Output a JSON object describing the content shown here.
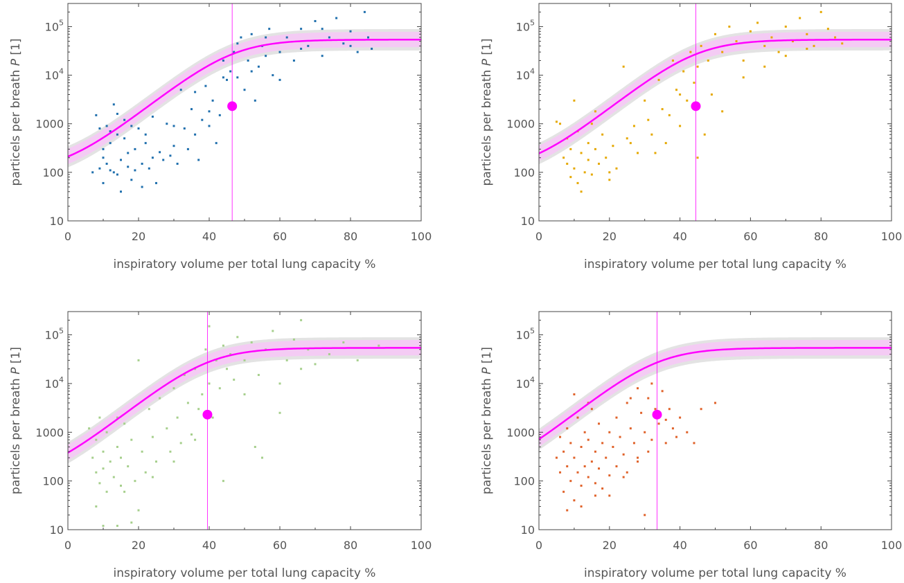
{
  "chart_data": [
    {
      "type": "scatter",
      "xlabel": "inspiratory volume per total lung capacity %",
      "ylabel_text": "particels per breath ",
      "ylabel_symbol": "P",
      "ylabel_unit": " [1]",
      "xlim": [
        0,
        100
      ],
      "ylim": [
        10,
        300000
      ],
      "y_scale": "log",
      "x_ticks": [
        "0",
        "20",
        "40",
        "60",
        "80",
        "100"
      ],
      "y_ticks": [
        "10",
        "100",
        "1000",
        "10^4",
        "10^5"
      ],
      "grid": false,
      "marker_color": "#1f6fad",
      "midpoint": {
        "x": 46.5,
        "y": 2300
      },
      "fit_curve": {
        "color": "#ff00ff",
        "band": "#f5c8f5",
        "outer_band": "#dcdcdc",
        "low": 100,
        "high": 54000,
        "x0": 46.5,
        "k": 0.133
      },
      "points": [
        [
          8,
          1500
        ],
        [
          9,
          800
        ],
        [
          9,
          120
        ],
        [
          10,
          300
        ],
        [
          10,
          200
        ],
        [
          11,
          150
        ],
        [
          11,
          900
        ],
        [
          12,
          400
        ],
        [
          12,
          110
        ],
        [
          13,
          2500
        ],
        [
          13,
          100
        ],
        [
          14,
          600
        ],
        [
          14,
          90
        ],
        [
          15,
          180
        ],
        [
          15,
          40
        ],
        [
          16,
          1200
        ],
        [
          16,
          500
        ],
        [
          17,
          250
        ],
        [
          17,
          130
        ],
        [
          18,
          70
        ],
        [
          19,
          300
        ],
        [
          19,
          110
        ],
        [
          20,
          800
        ],
        [
          21,
          150
        ],
        [
          21,
          50
        ],
        [
          22,
          400
        ],
        [
          23,
          120
        ],
        [
          24,
          200
        ],
        [
          25,
          60
        ],
        [
          26,
          260
        ],
        [
          27,
          180
        ],
        [
          28,
          1000
        ],
        [
          29,
          220
        ],
        [
          30,
          350
        ],
        [
          31,
          150
        ],
        [
          32,
          5000
        ],
        [
          33,
          800
        ],
        [
          34,
          300
        ],
        [
          35,
          2000
        ],
        [
          36,
          600
        ],
        [
          37,
          180
        ],
        [
          38,
          1200
        ],
        [
          39,
          6000
        ],
        [
          40,
          900
        ],
        [
          41,
          3000
        ],
        [
          42,
          400
        ],
        [
          43,
          1500
        ],
        [
          44,
          20000
        ],
        [
          45,
          8000
        ],
        [
          46,
          12000
        ],
        [
          47,
          30000
        ],
        [
          48,
          9000
        ],
        [
          49,
          60000
        ],
        [
          50,
          5000
        ],
        [
          51,
          20000
        ],
        [
          52,
          70000
        ],
        [
          53,
          3000
        ],
        [
          54,
          15000
        ],
        [
          55,
          40000
        ],
        [
          56,
          25000
        ],
        [
          57,
          90000
        ],
        [
          58,
          10000
        ],
        [
          60,
          30000
        ],
        [
          62,
          60000
        ],
        [
          64,
          20000
        ],
        [
          66,
          90000
        ],
        [
          68,
          40000
        ],
        [
          70,
          130000
        ],
        [
          72,
          25000
        ],
        [
          74,
          60000
        ],
        [
          76,
          150000
        ],
        [
          78,
          45000
        ],
        [
          80,
          80000
        ],
        [
          82,
          30000
        ],
        [
          84,
          200000
        ],
        [
          85,
          60000
        ],
        [
          86,
          35000
        ],
        [
          7,
          100
        ],
        [
          10,
          60
        ],
        [
          12,
          700
        ],
        [
          14,
          1600
        ],
        [
          18,
          900
        ],
        [
          22,
          600
        ],
        [
          24,
          1400
        ],
        [
          30,
          900
        ],
        [
          36,
          4500
        ],
        [
          40,
          1800
        ],
        [
          44,
          9000
        ],
        [
          48,
          45000
        ],
        [
          52,
          12000
        ],
        [
          56,
          60000
        ],
        [
          60,
          8000
        ],
        [
          66,
          35000
        ],
        [
          72,
          90000
        ],
        [
          80,
          40000
        ]
      ]
    },
    {
      "type": "scatter",
      "xlabel": "inspiratory volume per total lung capacity %",
      "ylabel_text": "particels per breath ",
      "ylabel_symbol": "P",
      "ylabel_unit": " [1]",
      "xlim": [
        0,
        100
      ],
      "ylim": [
        10,
        300000
      ],
      "y_scale": "log",
      "x_ticks": [
        "0",
        "20",
        "40",
        "60",
        "80",
        "100"
      ],
      "y_ticks": [
        "10",
        "100",
        "1000",
        "10^4",
        "10^5"
      ],
      "grid": false,
      "marker_color": "#e5a800",
      "midpoint": {
        "x": 44.5,
        "y": 2300
      },
      "fit_curve": {
        "color": "#ff00ff",
        "band": "#f5c8f5",
        "outer_band": "#dcdcdc",
        "low": 100,
        "high": 54000,
        "x0": 44.5,
        "k": 0.133
      },
      "points": [
        [
          6,
          1000
        ],
        [
          7,
          200
        ],
        [
          8,
          150
        ],
        [
          8,
          500
        ],
        [
          9,
          80
        ],
        [
          9,
          300
        ],
        [
          10,
          3000
        ],
        [
          10,
          120
        ],
        [
          11,
          60
        ],
        [
          11,
          700
        ],
        [
          12,
          250
        ],
        [
          13,
          100
        ],
        [
          14,
          400
        ],
        [
          14,
          180
        ],
        [
          15,
          90
        ],
        [
          15,
          1000
        ],
        [
          16,
          300
        ],
        [
          17,
          150
        ],
        [
          18,
          600
        ],
        [
          19,
          200
        ],
        [
          20,
          70
        ],
        [
          21,
          350
        ],
        [
          22,
          120
        ],
        [
          24,
          15000
        ],
        [
          25,
          500
        ],
        [
          27,
          900
        ],
        [
          28,
          250
        ],
        [
          30,
          3000
        ],
        [
          31,
          1200
        ],
        [
          32,
          600
        ],
        [
          34,
          8000
        ],
        [
          35,
          2000
        ],
        [
          36,
          400
        ],
        [
          37,
          1500
        ],
        [
          38,
          20000
        ],
        [
          39,
          5000
        ],
        [
          40,
          900
        ],
        [
          41,
          12000
        ],
        [
          42,
          3000
        ],
        [
          43,
          30000
        ],
        [
          44,
          7000
        ],
        [
          45,
          15000
        ],
        [
          46,
          40000
        ],
        [
          47,
          600
        ],
        [
          48,
          20000
        ],
        [
          49,
          4000
        ],
        [
          50,
          70000
        ],
        [
          52,
          30000
        ],
        [
          54,
          100000
        ],
        [
          56,
          50000
        ],
        [
          58,
          20000
        ],
        [
          60,
          80000
        ],
        [
          62,
          120000
        ],
        [
          64,
          40000
        ],
        [
          66,
          60000
        ],
        [
          68,
          30000
        ],
        [
          70,
          100000
        ],
        [
          72,
          50000
        ],
        [
          74,
          150000
        ],
        [
          76,
          70000
        ],
        [
          78,
          40000
        ],
        [
          80,
          200000
        ],
        [
          82,
          90000
        ],
        [
          84,
          60000
        ],
        [
          86,
          45000
        ],
        [
          5,
          1100
        ],
        [
          12,
          40
        ],
        [
          16,
          1800
        ],
        [
          20,
          100
        ],
        [
          26,
          400
        ],
        [
          33,
          250
        ],
        [
          40,
          4000
        ],
        [
          45,
          200
        ],
        [
          52,
          1800
        ],
        [
          58,
          9000
        ],
        [
          64,
          15000
        ],
        [
          70,
          25000
        ],
        [
          76,
          35000
        ]
      ]
    },
    {
      "type": "scatter",
      "xlabel": "inspiratory volume per total lung capacity %",
      "ylabel_text": "particels per breath ",
      "ylabel_symbol": "P",
      "ylabel_unit": " [1]",
      "xlim": [
        0,
        100
      ],
      "ylim": [
        10,
        300000
      ],
      "y_scale": "log",
      "x_ticks": [
        "0",
        "20",
        "40",
        "60",
        "80",
        "100"
      ],
      "y_ticks": [
        "10",
        "100",
        "1000",
        "10^4",
        "10^5"
      ],
      "grid": false,
      "marker_color": "#a6cf8c",
      "midpoint": {
        "x": 39.5,
        "y": 2300
      },
      "fit_curve": {
        "color": "#ff00ff",
        "band": "#f5c8f5",
        "outer_band": "#dcdcdc",
        "low": 100,
        "high": 54000,
        "x0": 39.5,
        "k": 0.133
      },
      "points": [
        [
          6,
          1200
        ],
        [
          7,
          300
        ],
        [
          8,
          150
        ],
        [
          8,
          700
        ],
        [
          9,
          90
        ],
        [
          9,
          2000
        ],
        [
          10,
          400
        ],
        [
          10,
          180
        ],
        [
          11,
          60
        ],
        [
          11,
          1000
        ],
        [
          12,
          250
        ],
        [
          13,
          120
        ],
        [
          14,
          500
        ],
        [
          14,
          2000
        ],
        [
          15,
          80
        ],
        [
          15,
          300
        ],
        [
          16,
          1500
        ],
        [
          17,
          200
        ],
        [
          18,
          700
        ],
        [
          19,
          100
        ],
        [
          20,
          30000
        ],
        [
          21,
          400
        ],
        [
          22,
          150
        ],
        [
          23,
          3000
        ],
        [
          24,
          800
        ],
        [
          25,
          250
        ],
        [
          26,
          5000
        ],
        [
          28,
          1200
        ],
        [
          29,
          400
        ],
        [
          30,
          8000
        ],
        [
          31,
          2000
        ],
        [
          32,
          600
        ],
        [
          33,
          15000
        ],
        [
          34,
          4000
        ],
        [
          35,
          900
        ],
        [
          36,
          20000
        ],
        [
          37,
          3000
        ],
        [
          38,
          6000
        ],
        [
          39,
          50000
        ],
        [
          40,
          10000
        ],
        [
          41,
          2000
        ],
        [
          42,
          30000
        ],
        [
          43,
          8000
        ],
        [
          44,
          60000
        ],
        [
          45,
          20000
        ],
        [
          46,
          40000
        ],
        [
          47,
          12000
        ],
        [
          48,
          90000
        ],
        [
          50,
          30000
        ],
        [
          52,
          70000
        ],
        [
          53,
          500
        ],
        [
          54,
          15000
        ],
        [
          56,
          50000
        ],
        [
          58,
          120000
        ],
        [
          60,
          2500
        ],
        [
          62,
          30000
        ],
        [
          64,
          80000
        ],
        [
          66,
          20000
        ],
        [
          68,
          50000
        ],
        [
          70,
          25000
        ],
        [
          74,
          40000
        ],
        [
          78,
          70000
        ],
        [
          82,
          30000
        ],
        [
          88,
          60000
        ],
        [
          10,
          12
        ],
        [
          14,
          12
        ],
        [
          18,
          14
        ],
        [
          20,
          25
        ],
        [
          8,
          30
        ],
        [
          16,
          60
        ],
        [
          24,
          120
        ],
        [
          30,
          250
        ],
        [
          36,
          700
        ],
        [
          40,
          150000
        ],
        [
          44,
          100
        ],
        [
          50,
          6000
        ],
        [
          55,
          300
        ],
        [
          60,
          10000
        ],
        [
          66,
          200000
        ]
      ]
    },
    {
      "type": "scatter",
      "xlabel": "inspiratory volume per total lung capacity %",
      "ylabel_text": "particels per breath ",
      "ylabel_symbol": "P",
      "ylabel_unit": " [1]",
      "xlim": [
        0,
        100
      ],
      "ylim": [
        10,
        300000
      ],
      "y_scale": "log",
      "x_ticks": [
        "0",
        "20",
        "40",
        "60",
        "80",
        "100"
      ],
      "y_ticks": [
        "10",
        "100",
        "1000",
        "10^4",
        "10^5"
      ],
      "grid": false,
      "marker_color": "#e0622a",
      "midpoint": {
        "x": 33.5,
        "y": 2300
      },
      "fit_curve": {
        "color": "#ff00ff",
        "band": "#f5c8f5",
        "outer_band": "#dcdcdc",
        "low": 100,
        "high": 54000,
        "x0": 33.5,
        "k": 0.133
      },
      "points": [
        [
          5,
          300
        ],
        [
          6,
          150
        ],
        [
          6,
          800
        ],
        [
          7,
          60
        ],
        [
          7,
          400
        ],
        [
          8,
          1200
        ],
        [
          8,
          200
        ],
        [
          9,
          100
        ],
        [
          9,
          600
        ],
        [
          10,
          40
        ],
        [
          10,
          300
        ],
        [
          11,
          2000
        ],
        [
          11,
          150
        ],
        [
          12,
          80
        ],
        [
          12,
          500
        ],
        [
          13,
          1000
        ],
        [
          13,
          200
        ],
        [
          14,
          120
        ],
        [
          14,
          700
        ],
        [
          15,
          3000
        ],
        [
          15,
          250
        ],
        [
          16,
          90
        ],
        [
          16,
          400
        ],
        [
          17,
          1500
        ],
        [
          17,
          180
        ],
        [
          18,
          600
        ],
        [
          18,
          70
        ],
        [
          19,
          300
        ],
        [
          20,
          1000
        ],
        [
          20,
          130
        ],
        [
          21,
          500
        ],
        [
          22,
          2000
        ],
        [
          22,
          200
        ],
        [
          23,
          800
        ],
        [
          24,
          350
        ],
        [
          25,
          4000
        ],
        [
          25,
          150
        ],
        [
          26,
          1200
        ],
        [
          27,
          600
        ],
        [
          28,
          8000
        ],
        [
          28,
          300
        ],
        [
          29,
          2500
        ],
        [
          30,
          1000
        ],
        [
          31,
          5000
        ],
        [
          31,
          400
        ],
        [
          32,
          10000
        ],
        [
          33,
          3000
        ],
        [
          34,
          1500
        ],
        [
          35,
          7000
        ],
        [
          36,
          600
        ],
        [
          37,
          3000
        ],
        [
          38,
          1200
        ],
        [
          39,
          800
        ],
        [
          40,
          2000
        ],
        [
          42,
          1000
        ],
        [
          44,
          600
        ],
        [
          46,
          3000
        ],
        [
          50,
          4000
        ],
        [
          8,
          25
        ],
        [
          12,
          30
        ],
        [
          16,
          50
        ],
        [
          10,
          6000
        ],
        [
          14,
          4000
        ],
        [
          20,
          50
        ],
        [
          24,
          120
        ],
        [
          28,
          250
        ],
        [
          32,
          700
        ],
        [
          36,
          1800
        ],
        [
          30,
          20
        ],
        [
          26,
          5000
        ]
      ]
    }
  ]
}
